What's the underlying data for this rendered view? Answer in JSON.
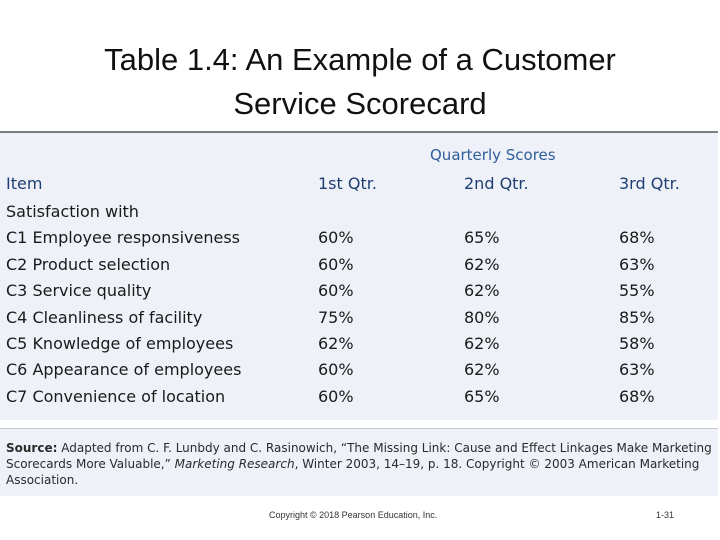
{
  "slide": {
    "title_line1": "Table 1.4: An Example of a Customer",
    "title_line2": "Service Scorecard"
  },
  "table": {
    "group_header": "Quarterly Scores",
    "columns": [
      "Item",
      "1st Qtr.",
      "2nd Qtr.",
      "3rd Qtr."
    ],
    "section_label": "Satisfaction with",
    "rows": [
      [
        "C1 Employee responsiveness",
        "60%",
        "65%",
        "68%"
      ],
      [
        "C2 Product selection",
        "60%",
        "62%",
        "63%"
      ],
      [
        "C3 Service quality",
        "60%",
        "62%",
        "55%"
      ],
      [
        "C4 Cleanliness of facility",
        "75%",
        "80%",
        "85%"
      ],
      [
        "C5 Knowledge of employees",
        "62%",
        "62%",
        "58%"
      ],
      [
        "C6 Appearance of employees",
        "60%",
        "62%",
        "63%"
      ],
      [
        "C7 Convenience of location",
        "60%",
        "65%",
        "68%"
      ]
    ]
  },
  "source": {
    "label": "Source:",
    "text_part1": "Adapted from C. F. Lunbdy and C. Rasinowich, “The Missing Link: Cause and Effect Linkages Make Marketing Scorecards More Valuable,”",
    "journal": "Marketing Research",
    "text_part2": ", Winter 2003, 14–19, p. 18. Copyright © 2003 American Marketing Association."
  },
  "footer": {
    "copyright": "Copyright © 2018 Pearson Education, Inc.",
    "page": "1-31"
  },
  "colors": {
    "header_blue": "#1f3f73",
    "group_header_blue": "#2f5d9a",
    "panel_background": "#eef1f7"
  }
}
